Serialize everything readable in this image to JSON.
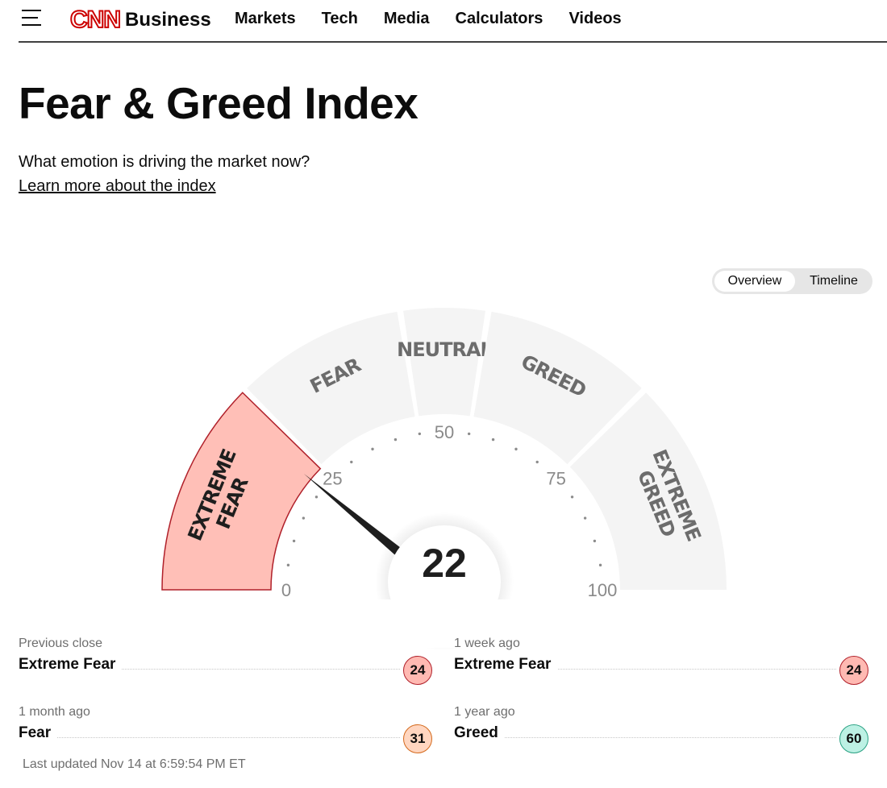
{
  "header": {
    "logo_mark": "CNN",
    "logo_text": "Business",
    "nav": [
      "Markets",
      "Tech",
      "Media",
      "Calculators",
      "Videos"
    ]
  },
  "page": {
    "title": "Fear & Greed Index",
    "subtitle": "What emotion is driving the market now?",
    "learn_link": "Learn more about the index"
  },
  "view_toggle": {
    "options": [
      "Overview",
      "Timeline"
    ],
    "selected": "Overview"
  },
  "gauge": {
    "value": 22,
    "value_display": "22",
    "min": 0,
    "max": 100,
    "tick_labels": [
      "0",
      "25",
      "50",
      "75",
      "100"
    ],
    "zones": [
      {
        "label_lines": [
          "EXTREME",
          "FEAR"
        ],
        "from": 0,
        "to": 25,
        "active": true
      },
      {
        "label_lines": [
          "FEAR"
        ],
        "from": 25,
        "to": 45,
        "active": false
      },
      {
        "label_lines": [
          "NEUTRAL"
        ],
        "from": 45,
        "to": 55,
        "active": false
      },
      {
        "label_lines": [
          "GREED"
        ],
        "from": 55,
        "to": 75,
        "active": false
      },
      {
        "label_lines": [
          "EXTREME",
          "GREED"
        ],
        "from": 75,
        "to": 100,
        "active": false
      }
    ],
    "colors": {
      "active_fill": "#ffbfb7",
      "active_stroke": "#b0202a",
      "zone_fill": "#f4f4f4",
      "zone_text": "#6c6c6c",
      "needle": "#1e1e1e"
    }
  },
  "stats": [
    {
      "label": "Previous close",
      "value": "Extreme Fear",
      "score": "24",
      "rating": "extreme-fear"
    },
    {
      "label": "1 week ago",
      "value": "Extreme Fear",
      "score": "24",
      "rating": "extreme-fear"
    },
    {
      "label": "1 month ago",
      "value": "Fear",
      "score": "31",
      "rating": "fear"
    },
    {
      "label": "1 year ago",
      "value": "Greed",
      "score": "60",
      "rating": "greed"
    }
  ],
  "last_updated": "Last updated Nov 14 at 6:59:54 PM ET"
}
